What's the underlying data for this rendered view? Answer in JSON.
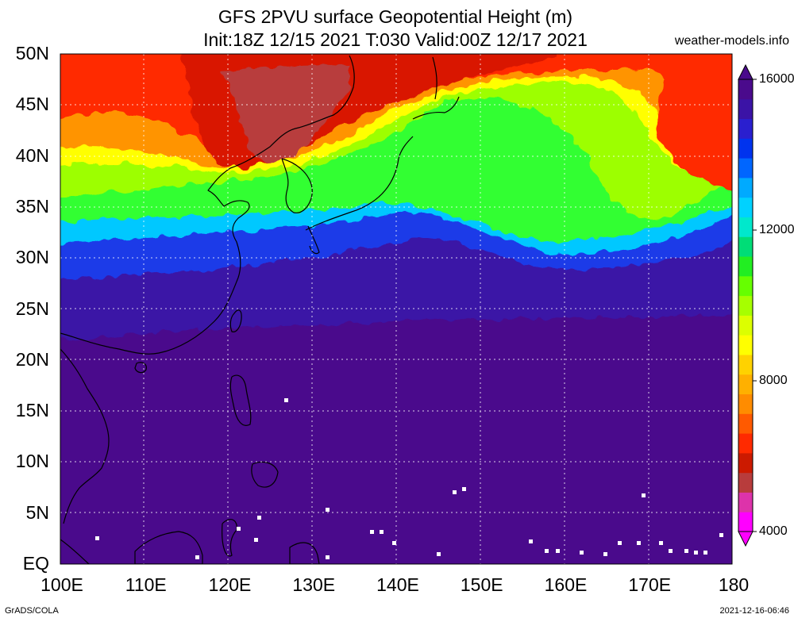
{
  "title_line1": "GFS 2PVU surface Geopotential Height (m)",
  "title_line2": "Init:18Z 12/15 2021 T:030 Valid:00Z 12/17 2021",
  "watermark": "weather-models.info",
  "lat_labels": [
    "50N",
    "45N",
    "40N",
    "35N",
    "30N",
    "25N",
    "20N",
    "15N",
    "10N",
    "5N",
    "EQ"
  ],
  "lon_labels": [
    "100E",
    "110E",
    "120E",
    "130E",
    "140E",
    "150E",
    "160E",
    "170E",
    "180"
  ],
  "colorbar": {
    "labels": [
      "16000",
      "12000",
      "8000",
      "4000"
    ],
    "colors": [
      "#ff00ff",
      "#dd33aa",
      "#b83c3c",
      "#cc1a00",
      "#ff2a00",
      "#ff5a00",
      "#ff8c00",
      "#ffb000",
      "#ffd200",
      "#ffff00",
      "#dcff00",
      "#a6ff00",
      "#66ff00",
      "#22ee22",
      "#00dd77",
      "#00e8cc",
      "#00d2ff",
      "#00aaff",
      "#0066ff",
      "#0033ee",
      "#2a1fcf",
      "#3b13a6",
      "#4a0a8c"
    ]
  },
  "footer_left": "GrADS/COLA",
  "footer_right": "2021-12-16-06:46"
}
